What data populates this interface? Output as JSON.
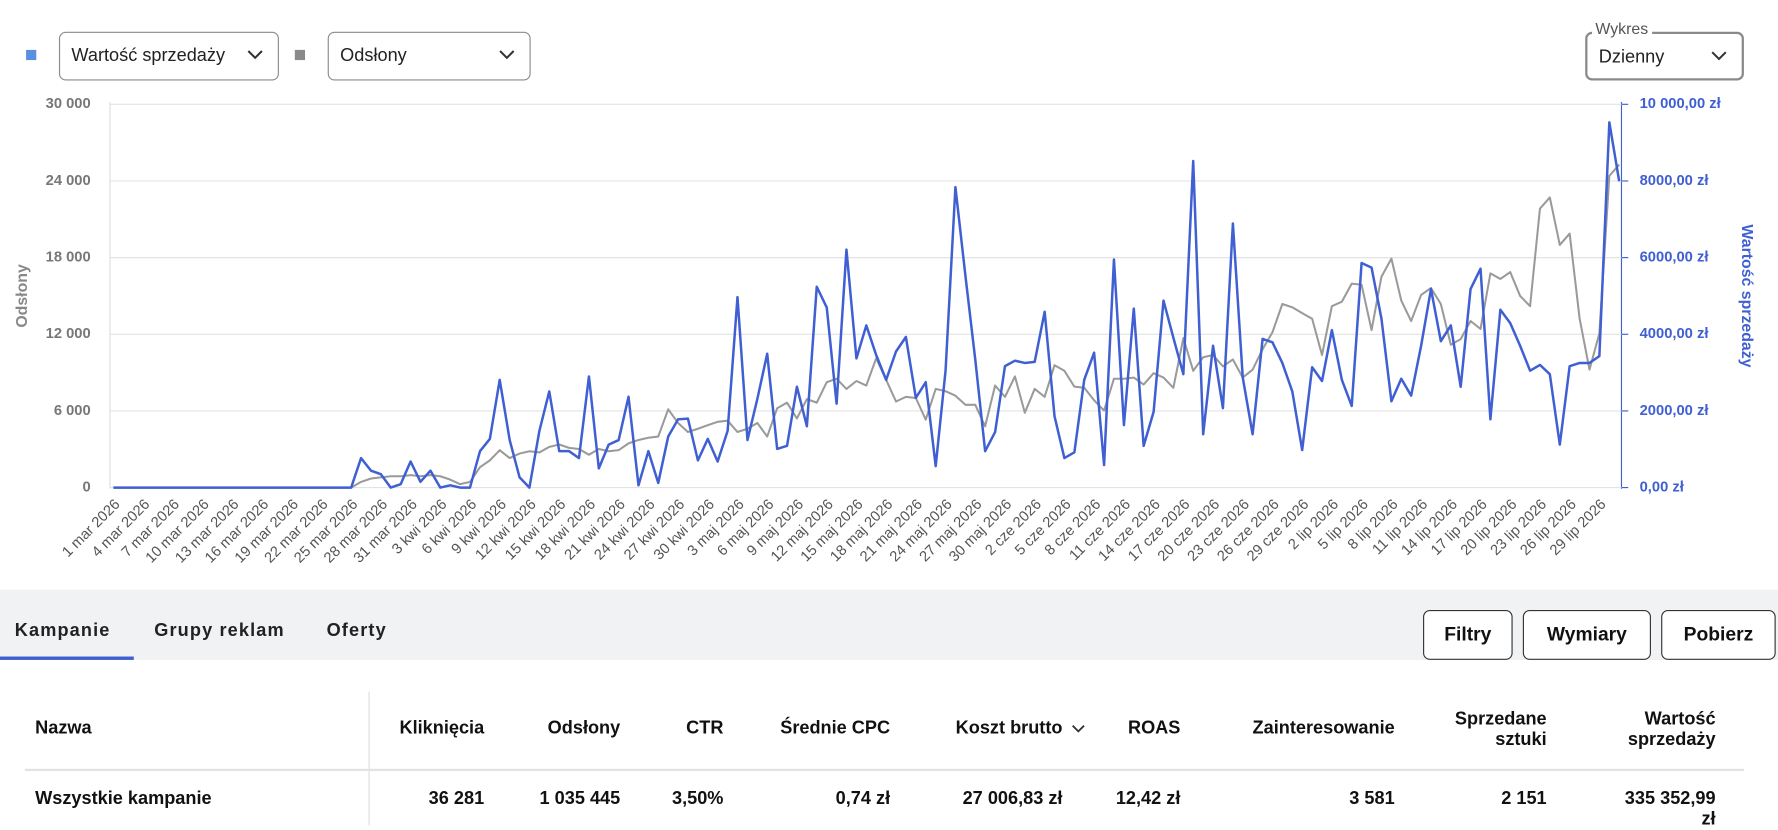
{
  "chart_data": {
    "type": "line",
    "y_label": "Odsłony",
    "y2_label": "Wartość sprzedaży",
    "categories": [
      "1 mar 2026",
      null,
      null,
      "4 mar 2026",
      null,
      null,
      "7 mar 2026",
      null,
      null,
      "10 mar 2026",
      null,
      null,
      "13 mar 2026",
      null,
      null,
      "16 mar 2026",
      null,
      null,
      "19 mar 2026",
      null,
      null,
      "22 mar 2026",
      null,
      null,
      "25 mar 2026",
      null,
      null,
      "28 mar 2026",
      null,
      null,
      "31 mar 2026",
      null,
      null,
      "3 kwi 2026",
      null,
      null,
      "6 kwi 2026",
      null,
      null,
      "9 kwi 2026",
      null,
      null,
      "12 kwi 2026",
      null,
      null,
      "15 kwi 2026",
      null,
      null,
      "18 kwi 2026",
      null,
      null,
      "21 kwi 2026",
      null,
      null,
      "24 kwi 2026",
      null,
      null,
      "27 kwi 2026",
      null,
      null,
      "30 kwi 2026",
      null,
      null,
      "3 maj 2026",
      null,
      null,
      "6 maj 2026",
      null,
      null,
      "9 maj 2026",
      null,
      null,
      "12 maj 2026",
      null,
      null,
      "15 maj 2026",
      null,
      null,
      "18 maj 2026",
      null,
      null,
      "21 maj 2026",
      null,
      null,
      "24 maj 2026",
      null,
      null,
      "27 maj 2026",
      null,
      null,
      "30 maj 2026",
      null,
      null,
      "2 cze 2026",
      null,
      null,
      "5 cze 2026",
      null,
      null,
      "8 cze 2026",
      null,
      null,
      "11 cze 2026",
      null,
      null,
      "14 cze 2026",
      null,
      null,
      "17 cze 2026",
      null,
      null,
      "20 cze 2026",
      null,
      null,
      "23 cze 2026",
      null,
      null,
      "26 cze 2026",
      null,
      null,
      "29 cze 2026",
      null,
      null,
      "2 lip 2026",
      null,
      null,
      "5 lip 2026",
      null,
      null,
      "8 lip 2026",
      null,
      null,
      "11 lip 2026",
      null,
      null,
      "14 lip 2026",
      null,
      null,
      "17 lip 2026",
      null,
      null,
      "20 lip 2026",
      null,
      null,
      "23 lip 2026",
      null,
      null,
      "26 lip 2026",
      null,
      null,
      "29 lip 2026",
      null,
      null
    ],
    "series": [
      {
        "name": "Odsłony",
        "color": "#9a9a9a",
        "axis": "y",
        "values": [
          0,
          0,
          0,
          0,
          0,
          0,
          0,
          0,
          0,
          0,
          0,
          0,
          0,
          0,
          0,
          0,
          0,
          0,
          0,
          0,
          0,
          0,
          0,
          0,
          0,
          440,
          710,
          800,
          890,
          890,
          980,
          890,
          980,
          890,
          620,
          270,
          440,
          1600,
          2130,
          2930,
          2310,
          2660,
          2840,
          2750,
          3190,
          3370,
          3110,
          3020,
          2570,
          3020,
          2840,
          2930,
          3460,
          3730,
          3900,
          3990,
          6120,
          5060,
          4350,
          4610,
          4880,
          5150,
          5240,
          4350,
          4610,
          5060,
          3990,
          6210,
          6650,
          5410,
          6920,
          6650,
          8250,
          8520,
          7720,
          8340,
          7990,
          10120,
          8430,
          6740,
          7100,
          7010,
          5320,
          7720,
          7540,
          7190,
          6480,
          6480,
          4790,
          7990,
          7100,
          8700,
          5860,
          7720,
          7100,
          9580,
          9140,
          7900,
          7810,
          6830,
          6030,
          8520,
          8520,
          8610,
          8070,
          8960,
          8610,
          7810,
          11710,
          9140,
          10200,
          10380,
          9490,
          10030,
          8610,
          9230,
          10830,
          12160,
          14370,
          14110,
          13660,
          13220,
          10380,
          14200,
          14550,
          15970,
          15880,
          12330,
          16500,
          17920,
          14640,
          13040,
          15080,
          15620,
          14370,
          11180,
          11620,
          13040,
          12420,
          16770,
          16330,
          16860,
          15000,
          14200,
          21830,
          22710,
          18990,
          19880,
          13220,
          9230,
          12070,
          24400,
          25290
        ]
      },
      {
        "name": "Wartość sprzedaży",
        "color": "#3f5fd2",
        "axis": "y2",
        "values": [
          0,
          0,
          0,
          0,
          0,
          0,
          0,
          0,
          0,
          0,
          0,
          0,
          0,
          0,
          0,
          0,
          0,
          0,
          0,
          0,
          0,
          0,
          0,
          0,
          0,
          770,
          440,
          350,
          0,
          90,
          680,
          150,
          440,
          0,
          60,
          0,
          0,
          950,
          1270,
          2810,
          1240,
          270,
          0,
          1480,
          2510,
          950,
          950,
          770,
          2900,
          500,
          1120,
          1240,
          2370,
          60,
          950,
          120,
          1330,
          1780,
          1800,
          710,
          1270,
          680,
          1480,
          4970,
          1240,
          2310,
          3490,
          1010,
          1090,
          2630,
          1600,
          5240,
          4700,
          2190,
          6210,
          3370,
          4230,
          3460,
          2810,
          3550,
          3930,
          2340,
          2750,
          560,
          3050,
          7840,
          5530,
          3340,
          950,
          1450,
          3170,
          3310,
          3250,
          3280,
          4590,
          1860,
          770,
          920,
          2810,
          3520,
          590,
          5950,
          1630,
          4670,
          1090,
          1980,
          4880,
          3910,
          2960,
          8520,
          1390,
          3700,
          2070,
          6890,
          2870,
          1390,
          3880,
          3790,
          3250,
          2510,
          980,
          3140,
          2780,
          4110,
          2810,
          2130,
          5860,
          5740,
          4410,
          2250,
          2840,
          2400,
          3700,
          5180,
          3820,
          4230,
          2630,
          5180,
          5710,
          1780,
          4640,
          4290,
          3700,
          3050,
          3200,
          2960,
          1120,
          3170,
          3250,
          3250,
          3430,
          9530,
          7990
        ]
      }
    ],
    "ylim": [
      0,
      30000
    ],
    "yticks": [
      0,
      {
        "value": 6000,
        "label": "6 000"
      },
      {
        "value": 12000,
        "label": "12 000"
      },
      {
        "value": 18000,
        "label": "18 000"
      },
      {
        "value": 24000,
        "label": "24 000"
      },
      {
        "value": 30000,
        "label": "30 000"
      }
    ],
    "y2lim": [
      0,
      10000
    ],
    "y2ticks": [
      {
        "value": 0,
        "label": "0,00 zł"
      },
      {
        "value": 2000,
        "label": "2000,00 zł"
      },
      {
        "value": 4000,
        "label": "4000,00 zł"
      },
      {
        "value": 6000,
        "label": "6000,00 zł"
      },
      {
        "value": 8000,
        "label": "8000,00 zł"
      },
      {
        "value": 10000,
        "label": "10 000,00 zł"
      }
    ],
    "grid": true
  },
  "controls": {
    "view_label": "Wykres",
    "view_value": "Dzienny"
  },
  "tabs": [
    "Kampanie",
    "Grupy reklam",
    "Oferty"
  ],
  "buttons": [
    "Filtry",
    "Wymiary",
    "Pobierz"
  ],
  "table": {
    "headers": [
      "Nazwa",
      "Kliknięcia",
      "Odsłony",
      "CTR",
      "Średnie CPC",
      "Koszt brutto",
      "ROAS",
      "Zainteresowanie",
      "Sprzedane sztuki",
      "Wartość sprzedaży"
    ],
    "rows": [
      [
        "Wszystkie kampanie",
        "36 281",
        "1 035 445",
        "3,50%",
        "0,74 zł",
        "27 006,83 zł",
        "12,42 zł",
        "3 581",
        "2 151",
        "335 352,99 zł"
      ]
    ]
  }
}
